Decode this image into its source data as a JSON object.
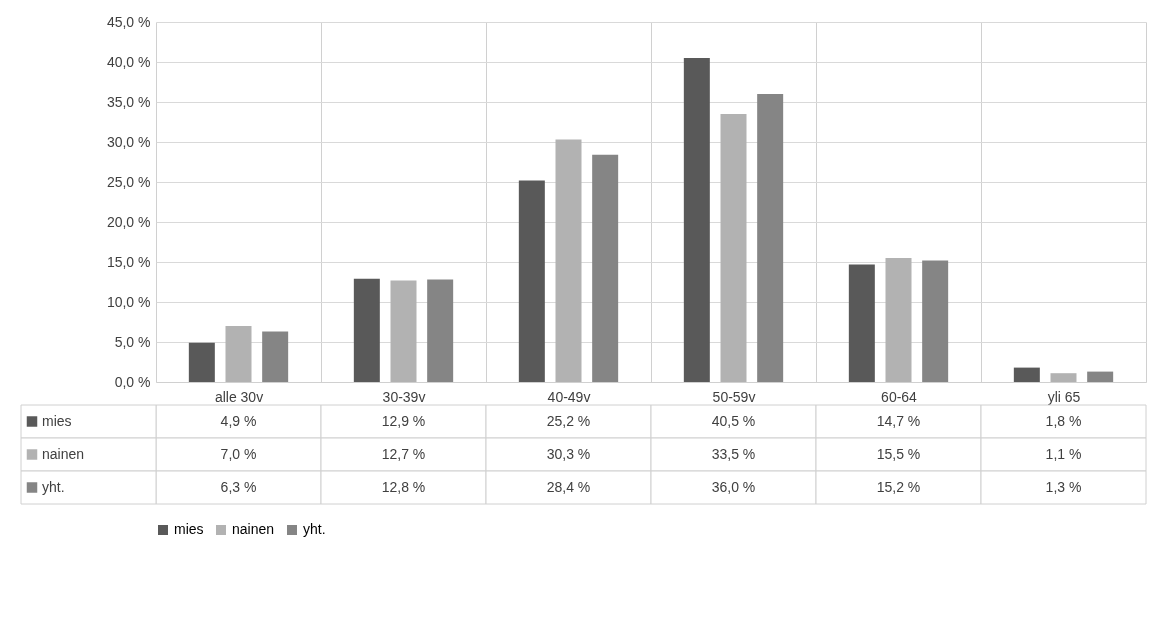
{
  "chart_data": {
    "type": "bar",
    "categories": [
      "alle 30v",
      "30-39v",
      "40-49v",
      "50-59v",
      "60-64",
      "yli 65"
    ],
    "series": [
      {
        "name": "mies",
        "color": "#595959",
        "values": [
          4.9,
          12.9,
          25.2,
          40.5,
          14.7,
          1.8
        ],
        "value_labels": [
          "4,9 %",
          "12,9 %",
          "25,2 %",
          "40,5 %",
          "14,7 %",
          "1,8 %"
        ]
      },
      {
        "name": "nainen",
        "color": "#b2b2b2",
        "values": [
          7.0,
          12.7,
          30.3,
          33.5,
          15.5,
          1.1
        ],
        "value_labels": [
          "7,0 %",
          "12,7 %",
          "30,3 %",
          "33,5 %",
          "15,5 %",
          "1,1 %"
        ]
      },
      {
        "name": "yht.",
        "color": "#858585",
        "values": [
          6.3,
          12.8,
          28.4,
          36.0,
          15.2,
          1.3
        ],
        "value_labels": [
          "6,3 %",
          "12,8 %",
          "28,4 %",
          "36,0 %",
          "15,2 %",
          "1,3 %"
        ]
      }
    ],
    "ylim": [
      0,
      45
    ],
    "yticks": [
      {
        "value": 0,
        "label": "0,0 %"
      },
      {
        "value": 5,
        "label": "5,0 %"
      },
      {
        "value": 10,
        "label": "10,0 %"
      },
      {
        "value": 15,
        "label": "15,0 %"
      },
      {
        "value": 20,
        "label": "20,0 %"
      },
      {
        "value": 25,
        "label": "25,0 %"
      },
      {
        "value": 30,
        "label": "30,0 %"
      },
      {
        "value": 35,
        "label": "35,0 %"
      },
      {
        "value": 40,
        "label": "40,0 %"
      },
      {
        "value": 45,
        "label": "45,0 %"
      }
    ],
    "grid": "y",
    "legend": "bottom"
  }
}
